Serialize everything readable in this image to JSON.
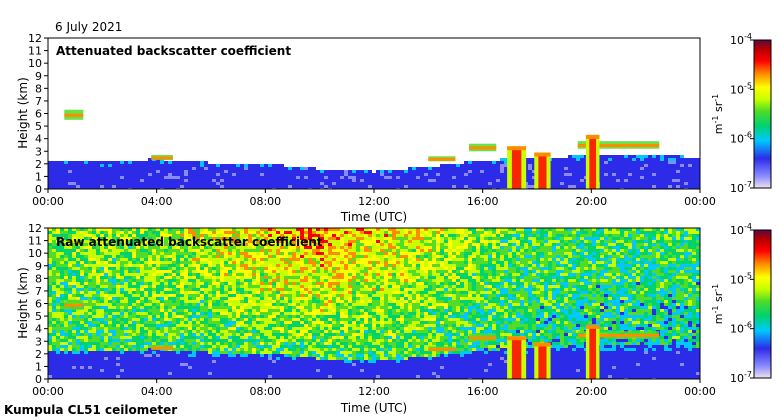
{
  "date": "6 July 2021",
  "instrument": "Kumpula CL51 ceilometer",
  "chart_data": [
    {
      "type": "heatmap",
      "title": "Attenuated backscatter coefficient",
      "xlabel": "Time (UTC)",
      "ylabel": "Height (km)",
      "xlim": [
        "00:00",
        "24:00"
      ],
      "ylim": [
        0,
        12
      ],
      "x_ticks": [
        "00:00",
        "04:00",
        "08:00",
        "12:00",
        "16:00",
        "20:00",
        "00:00"
      ],
      "y_ticks": [
        0,
        1,
        2,
        3,
        4,
        5,
        6,
        7,
        8,
        9,
        10,
        11,
        12
      ],
      "colorbar": {
        "scale": "log",
        "range": [
          1e-07,
          0.0001
        ],
        "ticks": [
          "10^-7",
          "10^-6",
          "10^-5",
          "10^-4"
        ],
        "unit": "m-1 sr-1"
      }
    },
    {
      "type": "heatmap",
      "title": "Raw attenuated backscatter coefficient",
      "xlabel": "Time (UTC)",
      "ylabel": "Height (km)",
      "xlim": [
        "00:00",
        "24:00"
      ],
      "ylim": [
        0,
        12
      ],
      "x_ticks": [
        "00:00",
        "04:00",
        "08:00",
        "12:00",
        "16:00",
        "20:00",
        "00:00"
      ],
      "y_ticks": [
        0,
        1,
        2,
        3,
        4,
        5,
        6,
        7,
        8,
        9,
        10,
        11,
        12
      ],
      "colorbar": {
        "scale": "log",
        "range": [
          1e-07,
          0.0001
        ],
        "ticks": [
          "10^-7",
          "10^-6",
          "10^-5",
          "10^-4"
        ],
        "unit": "m-1 sr-1"
      }
    }
  ],
  "features": {
    "boundary_layer_top_km": {
      "hours": [
        0,
        2,
        4,
        6,
        8,
        10,
        12,
        14,
        16,
        18,
        20,
        22,
        24
      ],
      "heights": [
        2.4,
        2.3,
        2.5,
        2.2,
        2.1,
        1.7,
        1.5,
        1.9,
        2.4,
        2.6,
        2.8,
        2.9,
        2.6
      ]
    },
    "cloud_layers": [
      {
        "start_h": 0.6,
        "end_h": 1.3,
        "base_km": 5.5,
        "top_km": 6.3
      },
      {
        "start_h": 3.8,
        "end_h": 4.6,
        "base_km": 2.3,
        "top_km": 2.7
      },
      {
        "start_h": 14.0,
        "end_h": 15.0,
        "base_km": 2.2,
        "top_km": 2.6
      },
      {
        "start_h": 15.5,
        "end_h": 16.5,
        "base_km": 3.0,
        "top_km": 3.6
      },
      {
        "start_h": 19.5,
        "end_h": 22.5,
        "base_km": 3.2,
        "top_km": 3.8
      }
    ],
    "precipitation_shafts": [
      {
        "start_h": 16.9,
        "end_h": 17.6,
        "top_km": 3.4
      },
      {
        "start_h": 17.9,
        "end_h": 18.5,
        "top_km": 2.9
      },
      {
        "start_h": 19.8,
        "end_h": 20.3,
        "top_km": 4.3
      }
    ]
  },
  "colors": {
    "scale": [
      "#ece4ec",
      "#8b8bff",
      "#2c2ce8",
      "#00c8ff",
      "#00d26e",
      "#50dc28",
      "#c8ff00",
      "#ffff00",
      "#ff8c00",
      "#ff0000",
      "#b40000",
      "#5a0a46"
    ]
  }
}
